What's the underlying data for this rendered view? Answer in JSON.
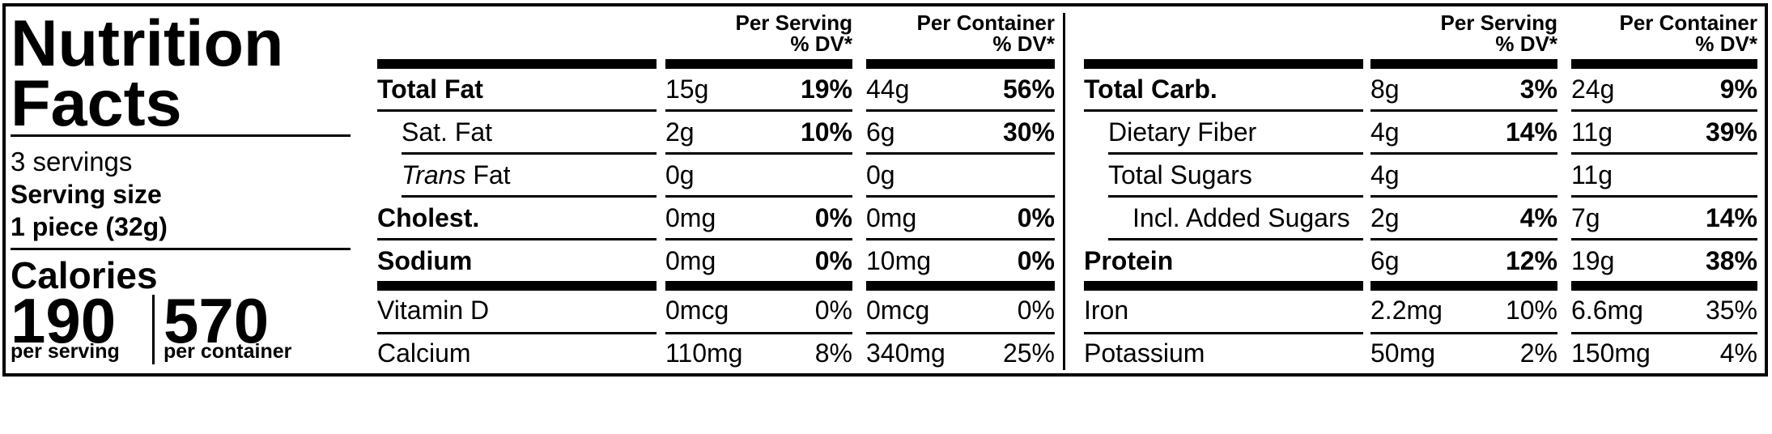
{
  "title_line1": "Nutrition",
  "title_line2": "Facts",
  "servings": "3 servings",
  "serving_size_label": "Serving size",
  "serving_size_value": "1 piece (32g)",
  "calories_label": "Calories",
  "calories_per_serving": "190",
  "calories_per_serving_label": "per serving",
  "calories_per_container": "570",
  "calories_per_container_label": "per container",
  "left_table": {
    "head_serving": [
      "Per Serving",
      "% DV*"
    ],
    "head_container": [
      "Per Container",
      "% DV*"
    ],
    "rows": [
      {
        "name": "Total Fat",
        "bold": true,
        "indent": 0,
        "s_amt": "15g",
        "s_dv": "19%",
        "c_amt": "44g",
        "c_dv": "56%"
      },
      {
        "name": "Sat. Fat",
        "bold": false,
        "indent": 1,
        "s_amt": "2g",
        "s_dv": "10%",
        "c_amt": "6g",
        "c_dv": "30%"
      },
      {
        "name_italic": "Trans",
        "name": " Fat",
        "bold": false,
        "indent": 1,
        "s_amt": "0g",
        "s_dv": "",
        "c_amt": "0g",
        "c_dv": ""
      },
      {
        "name": "Cholest.",
        "bold": true,
        "indent": 0,
        "s_amt": "0mg",
        "s_dv": "0%",
        "c_amt": "0mg",
        "c_dv": "0%"
      },
      {
        "name": "Sodium",
        "bold": true,
        "indent": 0,
        "s_amt": "0mg",
        "s_dv": "0%",
        "c_amt": "10mg",
        "c_dv": "0%"
      },
      {
        "name": "Vitamin D",
        "bold": false,
        "indent": 0,
        "s_amt": "0mcg",
        "s_dv": "0%",
        "c_amt": "0mcg",
        "c_dv": "0%"
      },
      {
        "name": "Calcium",
        "bold": false,
        "indent": 0,
        "s_amt": "110mg",
        "s_dv": "8%",
        "c_amt": "340mg",
        "c_dv": "25%"
      }
    ]
  },
  "right_table": {
    "head_serving": [
      "Per Serving",
      "% DV*"
    ],
    "head_container": [
      "Per Container",
      "% DV*"
    ],
    "rows": [
      {
        "name": "Total Carb.",
        "bold": true,
        "indent": 0,
        "s_amt": "8g",
        "s_dv": "3%",
        "c_amt": "24g",
        "c_dv": "9%"
      },
      {
        "name": "Dietary Fiber",
        "bold": false,
        "indent": 1,
        "s_amt": "4g",
        "s_dv": "14%",
        "c_amt": "11g",
        "c_dv": "39%"
      },
      {
        "name": "Total Sugars",
        "bold": false,
        "indent": 1,
        "s_amt": "4g",
        "s_dv": "",
        "c_amt": "11g",
        "c_dv": ""
      },
      {
        "name": "Incl. Added Sugars",
        "bold": false,
        "indent": 2,
        "s_amt": "2g",
        "s_dv": "4%",
        "c_amt": "7g",
        "c_dv": "14%"
      },
      {
        "name": "Protein",
        "bold": true,
        "indent": 0,
        "s_amt": "6g",
        "s_dv": "12%",
        "c_amt": "19g",
        "c_dv": "38%"
      },
      {
        "name": "Iron",
        "bold": false,
        "indent": 0,
        "s_amt": "2.2mg",
        "s_dv": "10%",
        "c_amt": "6.6mg",
        "c_dv": "35%"
      },
      {
        "name": "Potassium",
        "bold": false,
        "indent": 0,
        "s_amt": "50mg",
        "s_dv": "2%",
        "c_amt": "150mg",
        "c_dv": "4%"
      }
    ]
  }
}
